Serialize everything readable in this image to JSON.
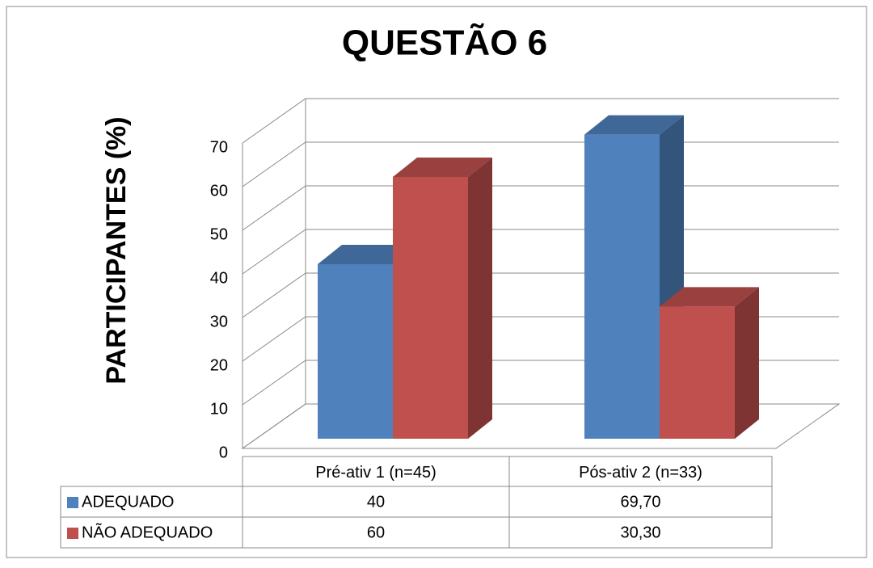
{
  "chart_data": {
    "type": "bar3d",
    "title": "QUESTÃO 6",
    "y_label": "PARTICIPANTES (%)",
    "categories": [
      "Pré-ativ 1 (n=45)",
      "Pós-ativ 2 (n=33)"
    ],
    "series": [
      {
        "name": "ADEQUADO",
        "color": "#4f81bd",
        "values": [
          40,
          69.7
        ],
        "value_labels": [
          "40",
          "69,70"
        ]
      },
      {
        "name": "NÃO ADEQUADO",
        "color": "#c0504d",
        "values": [
          60,
          30.3
        ],
        "value_labels": [
          "60",
          "30,30"
        ]
      }
    ],
    "ylim": [
      0,
      70
    ],
    "yticks": [
      0,
      10,
      20,
      30,
      40,
      50,
      60,
      70
    ],
    "grid": true
  }
}
